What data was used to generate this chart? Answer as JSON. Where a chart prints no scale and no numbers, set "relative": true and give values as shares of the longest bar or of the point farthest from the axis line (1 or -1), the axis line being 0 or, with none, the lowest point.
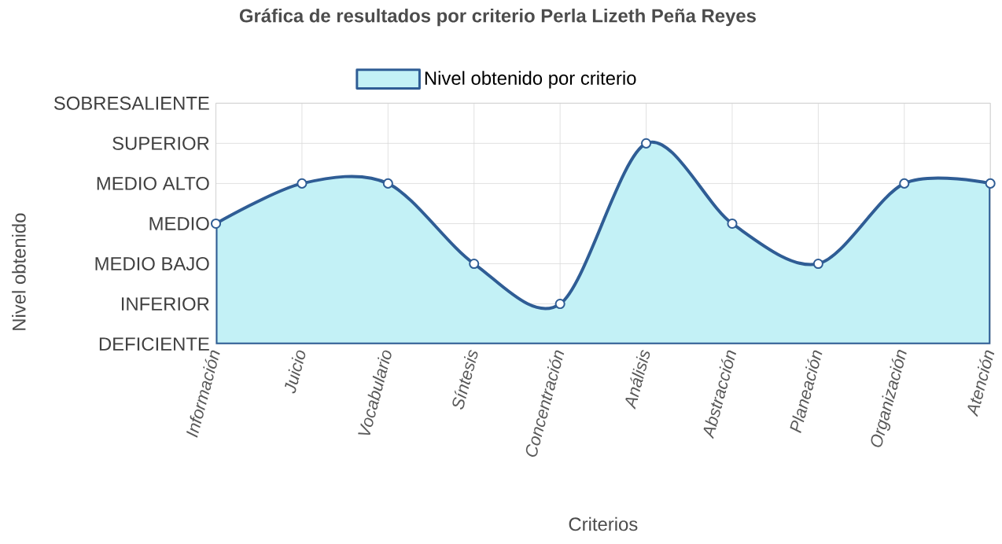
{
  "chart_data": {
    "type": "area",
    "title": "Gráfica de resultados por criterio Perla Lizeth Peña Reyes",
    "xlabel": "Criterios",
    "categories": [
      "Información",
      "Juicio",
      "Vocabulario",
      "Síntesis",
      "Concentración",
      "Análisis",
      "Abstracción",
      "Planeación",
      "Organización",
      "Atención"
    ],
    "series": [
      {
        "name": "Nivel obtenido por criterio",
        "color": "#2f5d95",
        "values": [
          0.6,
          0.8,
          0.8,
          0.4,
          0.2,
          1,
          0.6,
          0.4,
          0.8,
          0.8
        ]
      }
    ],
    "relative": true,
    "annotations": [
      "Nivel obtenido",
      "DEFICIENTE",
      "INFERIOR",
      "MEDIO BAJO",
      "MEDIO",
      "MEDIO ALTO",
      "SUPERIOR",
      "SOBRESALIENTE"
    ],
    "grid": true,
    "legend": "top",
    "marker": "circle",
    "line_style": "solid"
  }
}
